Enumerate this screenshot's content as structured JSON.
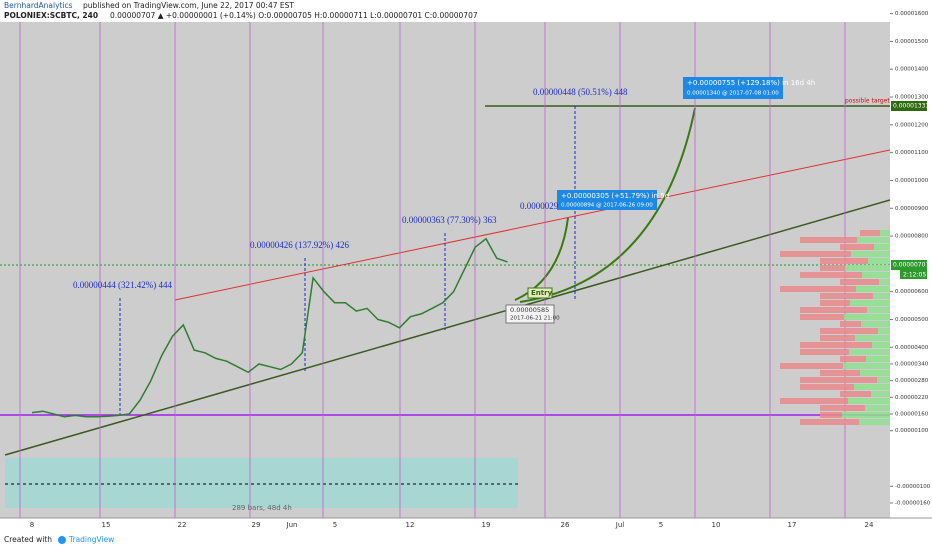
{
  "header": {
    "author": "BernhardAnalytics",
    "published": "published on TradingView.com, June 22, 2017 00:47 EST",
    "symbol": "POLONIEX:SCBTC, 240",
    "quote": "0.00000707 ▲ +0.00000001 (+0.14%) O:0.00000705 H:0.00000711 L:0.00000701 C:0.00000707"
  },
  "chart_data": {
    "type": "line",
    "color": "#2f7d32",
    "values": [
      1.65e-06,
      1.7e-06,
      1.6e-06,
      1.5e-06,
      1.55e-06,
      1.5e-06,
      1.5e-06,
      1.52e-06,
      1.55e-06,
      1.6e-06,
      2.1e-06,
      2.8e-06,
      3.7e-06,
      4.4e-06,
      4.8e-06,
      3.9e-06,
      3.8e-06,
      3.6e-06,
      3.5e-06,
      3.3e-06,
      3.1e-06,
      3.4e-06,
      3.3e-06,
      3.2e-06,
      3.4e-06,
      3.8e-06,
      6.5e-06,
      6e-06,
      5.6e-06,
      5.6e-06,
      5.3e-06,
      5.4e-06,
      5e-06,
      4.9e-06,
      4.7e-06,
      5.1e-06,
      5.2e-06,
      5.4e-06,
      5.6e-06,
      6e-06,
      6.8e-06,
      7.6e-06,
      7.9e-06,
      7.2e-06,
      7.07e-06
    ],
    "ylim": [
      -2.14e-06,
      1.649e-05
    ],
    "yticks": [
      {
        "value": 1.6e-05,
        "label": "0.00001600"
      },
      {
        "value": 1.5e-05,
        "label": "0.00001500"
      },
      {
        "value": 1.4e-05,
        "label": "0.00001400"
      },
      {
        "value": 1.3e-05,
        "label": "0.00001300"
      },
      {
        "value": 1.2e-05,
        "label": "0.00001200"
      },
      {
        "value": 1.1e-05,
        "label": "0.00001100"
      },
      {
        "value": 1e-05,
        "label": "0.00001000"
      },
      {
        "value": 9e-06,
        "label": "0.00000900"
      },
      {
        "value": 8e-06,
        "label": "0.00000800"
      },
      {
        "value": 6e-06,
        "label": "0.00000600"
      },
      {
        "value": 5e-06,
        "label": "0.00000500"
      },
      {
        "value": 4e-06,
        "label": "0.00000400"
      },
      {
        "value": 3.4e-06,
        "label": "0.00000340"
      },
      {
        "value": 2.8e-06,
        "label": "0.00000280"
      },
      {
        "value": 2.2e-06,
        "label": "0.00000220"
      },
      {
        "value": 1.6e-06,
        "label": "0.00000160"
      },
      {
        "value": 1e-06,
        "label": "0.00000100"
      },
      {
        "value": -1e-06,
        "label": "-0.00000100"
      },
      {
        "value": -1.6e-06,
        "label": "-0.00000160"
      }
    ],
    "xlabels": [
      "8",
      "15",
      "22",
      "29",
      "Jun",
      "5",
      "12",
      "19",
      "26",
      "Jul",
      "5",
      "10",
      "17",
      "24"
    ]
  },
  "annotations": {
    "a1": "0.00000444 (321.42%) 444",
    "a2": "0.00000426 (137.92%) 426",
    "a3": "0.00000363 (77.30%) 363",
    "a4": "0.00000448 (50.51%) 448",
    "a5": "0.0000029",
    "box1": [
      "+0.00000305 (+51.79%) in 5d",
      "0.00000894 @ 2017-06-26 09:00"
    ],
    "box2": [
      "+0.00000755 (+129.18%) in 16d 4h",
      "0.00001340 @ 2017-07-08 01:00"
    ],
    "target": "possible target",
    "target_price": "0.00001333",
    "last_price": "0.00000707",
    "countdown": "2:12:05",
    "entry": "Entry",
    "entry_price": "0.00000585",
    "entry_time": "2017-06-21 21:00",
    "range": "289 bars, 48d 4h"
  },
  "footer": {
    "created": "Created with",
    "brand": "TradingView"
  }
}
